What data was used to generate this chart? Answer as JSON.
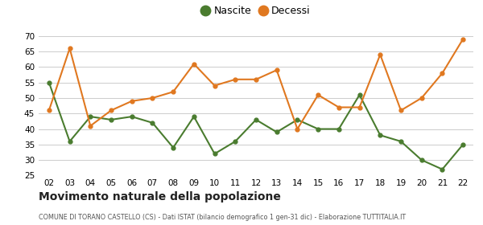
{
  "years": [
    "02",
    "03",
    "04",
    "05",
    "06",
    "07",
    "08",
    "09",
    "10",
    "11",
    "12",
    "13",
    "14",
    "15",
    "16",
    "17",
    "18",
    "19",
    "20",
    "21",
    "22"
  ],
  "nascite": [
    55,
    36,
    44,
    43,
    44,
    42,
    34,
    44,
    32,
    36,
    43,
    39,
    43,
    40,
    40,
    51,
    38,
    36,
    30,
    27,
    35
  ],
  "decessi": [
    46,
    66,
    41,
    46,
    49,
    50,
    52,
    61,
    54,
    56,
    56,
    59,
    40,
    51,
    47,
    47,
    64,
    46,
    50,
    58,
    69
  ],
  "nascite_color": "#4a7c2f",
  "decessi_color": "#e07820",
  "ylim": [
    25,
    70
  ],
  "yticks": [
    25,
    30,
    35,
    40,
    45,
    50,
    55,
    60,
    65,
    70
  ],
  "title": "Movimento naturale della popolazione",
  "subtitle": "COMUNE DI TORANO CASTELLO (CS) - Dati ISTAT (bilancio demografico 1 gen-31 dic) - Elaborazione TUTTITALIA.IT",
  "legend_nascite": "Nascite",
  "legend_decessi": "Decessi",
  "background_color": "#ffffff",
  "grid_color": "#cccccc"
}
